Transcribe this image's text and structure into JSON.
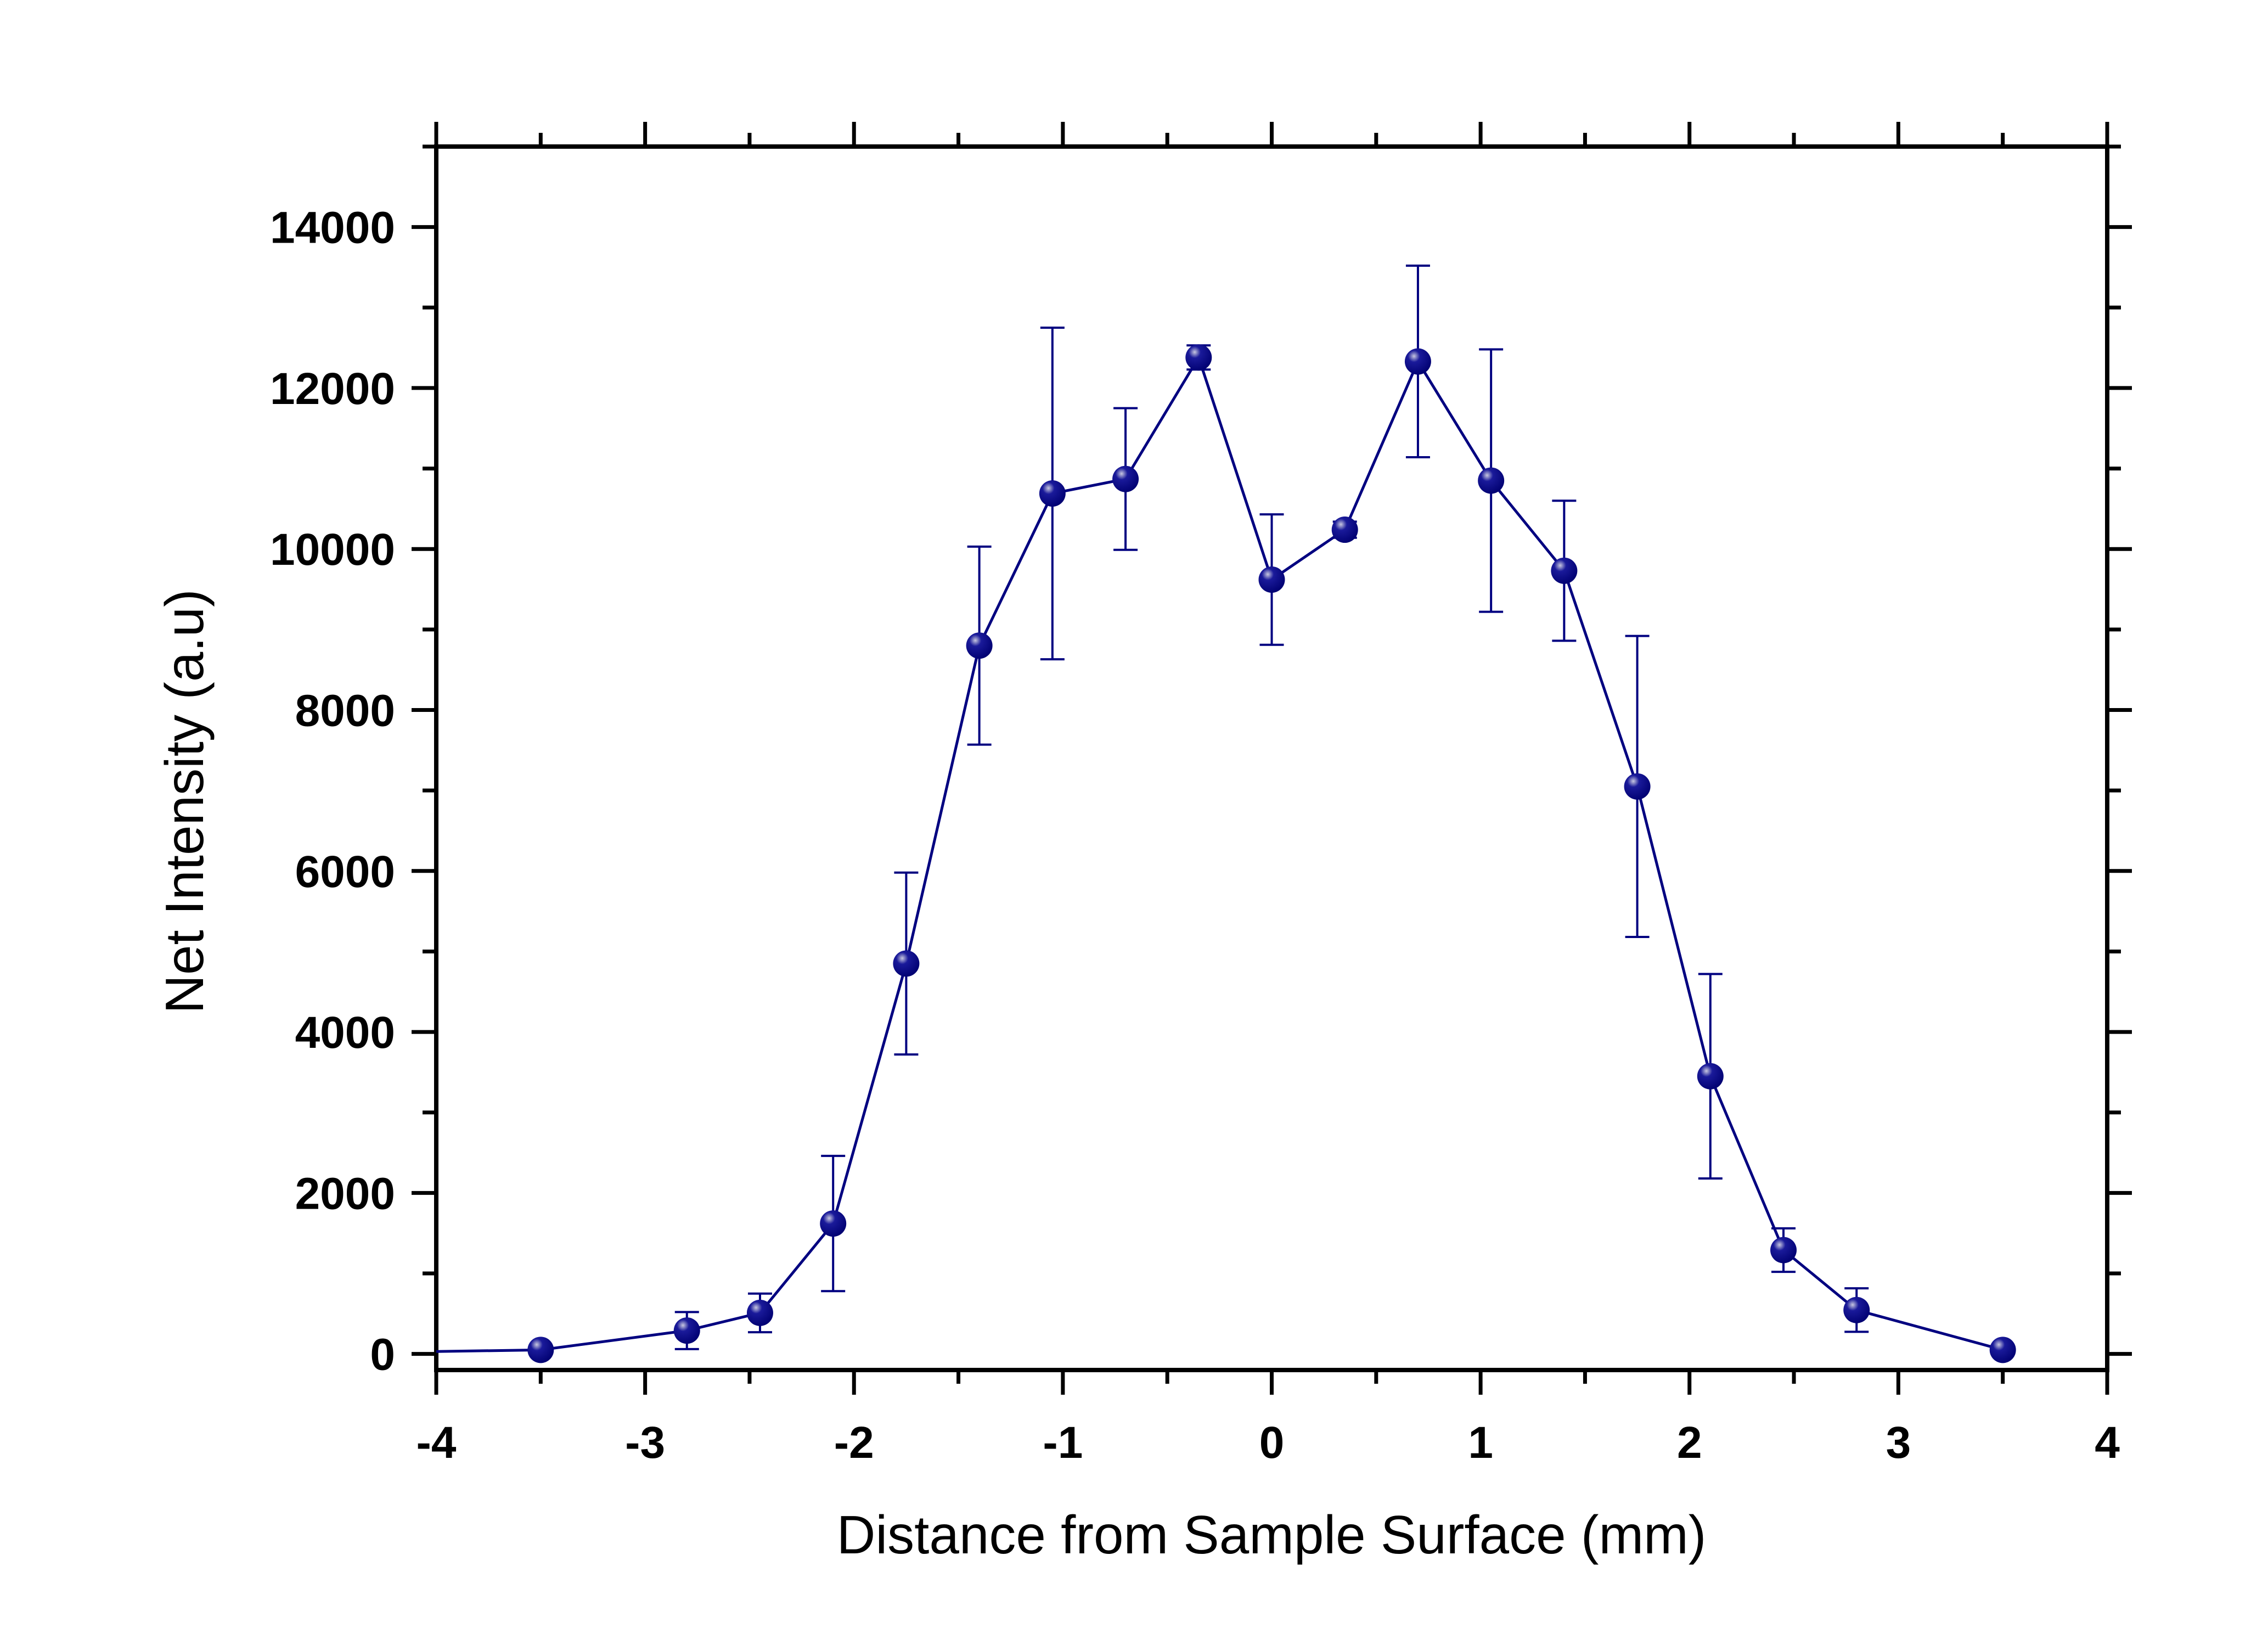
{
  "chart_data": {
    "type": "line",
    "title": "",
    "xlabel": "Distance from Sample Surface (mm)",
    "ylabel": "Net Intensity (a.u)",
    "xlim": [
      -4,
      4
    ],
    "ylim": [
      -200,
      15000
    ],
    "x_ticks": [
      -4,
      -3,
      -2,
      -1,
      0,
      1,
      2,
      3,
      4
    ],
    "x_tick_labels": [
      "-4",
      "-3",
      "-2",
      "-1",
      "0",
      "1",
      "2",
      "3",
      "4"
    ],
    "y_ticks": [
      0,
      2000,
      4000,
      6000,
      8000,
      10000,
      12000,
      14000
    ],
    "y_tick_labels": [
      "0",
      "2000",
      "4000",
      "6000",
      "8000",
      "10000",
      "12000",
      "14000"
    ],
    "grid": false,
    "legend": "none",
    "line_start": {
      "x": -4,
      "y": 30
    },
    "series": [
      {
        "name": "Net Intensity",
        "color": "#000080",
        "x": [
          -3.5,
          -2.8,
          -2.45,
          -2.1,
          -1.75,
          -1.4,
          -1.05,
          -0.7,
          -0.35,
          0,
          0.35,
          0.7,
          1.05,
          1.4,
          1.75,
          2.1,
          2.45,
          2.8,
          3.5
        ],
        "y": [
          50,
          290,
          510,
          1620,
          4850,
          8800,
          10690,
          10870,
          12380,
          9620,
          10240,
          12330,
          10850,
          9730,
          7050,
          3450,
          1290,
          545,
          50
        ],
        "error": [
          40,
          230,
          240,
          840,
          1130,
          1230,
          2060,
          880,
          150,
          810,
          100,
          1190,
          1630,
          870,
          1870,
          1270,
          270,
          270,
          40
        ]
      }
    ]
  }
}
